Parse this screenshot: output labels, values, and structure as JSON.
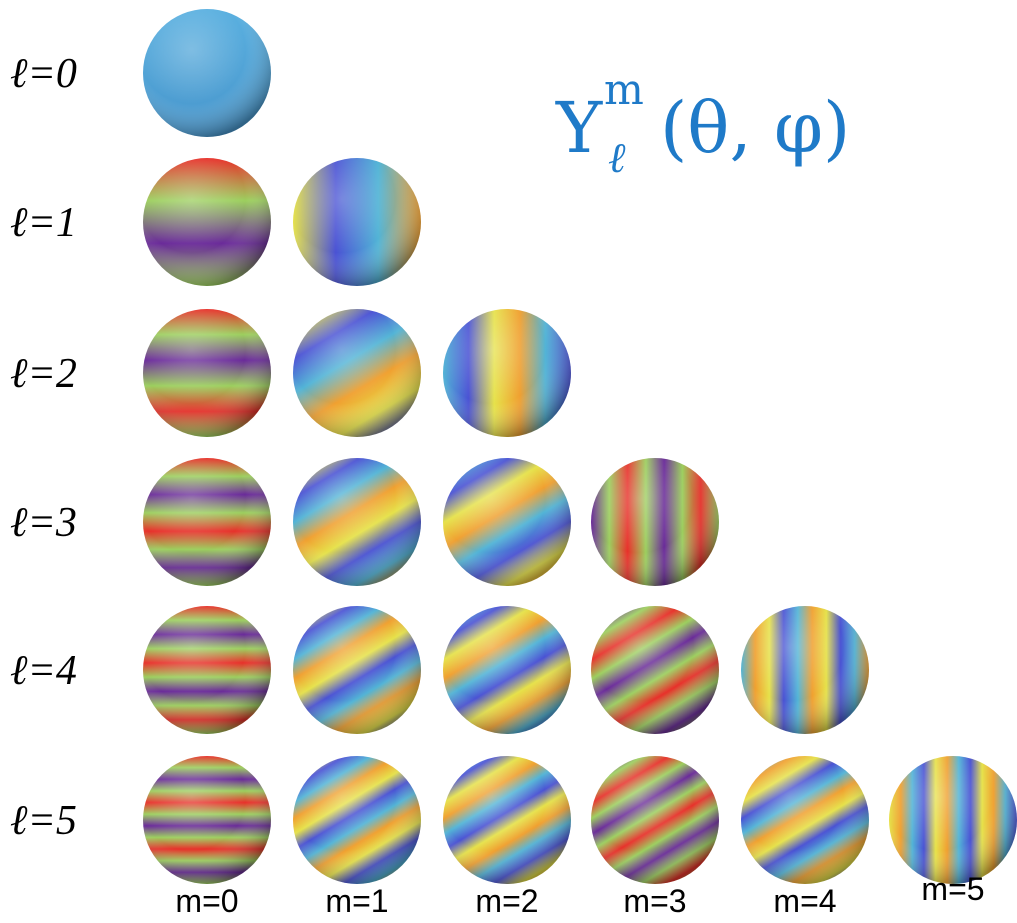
{
  "title": {
    "base": "Y",
    "sup": "m",
    "sub": "ℓ",
    "args": "(θ, φ)"
  },
  "rows": [
    "ℓ=0",
    "ℓ=1",
    "ℓ=2",
    "ℓ=3",
    "ℓ=4",
    "ℓ=5"
  ],
  "columns": [
    "m=0",
    "m=1",
    "m=2",
    "m=3",
    "m=4",
    "m=5"
  ]
}
